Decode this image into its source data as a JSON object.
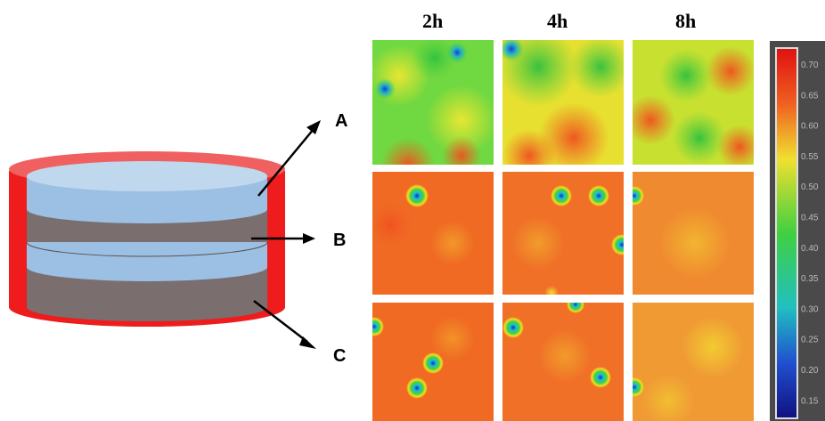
{
  "layers": [
    "A",
    "B",
    "C"
  ],
  "times": [
    "2h",
    "4h",
    "8h"
  ],
  "colorbar": {
    "ticks": [
      "0.70",
      "0.65",
      "0.60",
      "0.55",
      "0.50",
      "0.45",
      "0.40",
      "0.35",
      "0.30",
      "0.25",
      "0.20",
      "0.15"
    ]
  }
}
